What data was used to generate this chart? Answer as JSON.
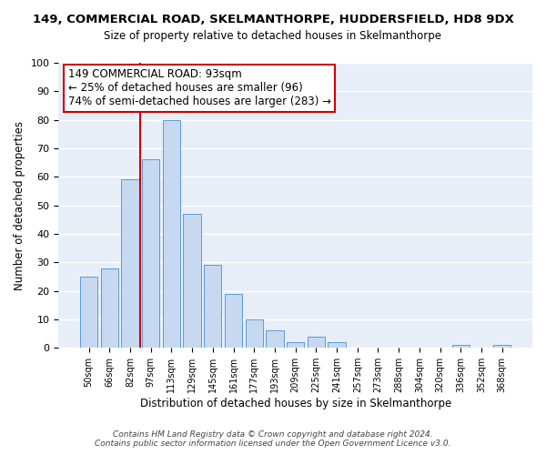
{
  "title": "149, COMMERCIAL ROAD, SKELMANTHORPE, HUDDERSFIELD, HD8 9DX",
  "subtitle": "Size of property relative to detached houses in Skelmanthorpe",
  "xlabel": "Distribution of detached houses by size in Skelmanthorpe",
  "ylabel": "Number of detached properties",
  "bar_labels": [
    "50sqm",
    "66sqm",
    "82sqm",
    "97sqm",
    "113sqm",
    "129sqm",
    "145sqm",
    "161sqm",
    "177sqm",
    "193sqm",
    "209sqm",
    "225sqm",
    "241sqm",
    "257sqm",
    "273sqm",
    "288sqm",
    "304sqm",
    "320sqm",
    "336sqm",
    "352sqm",
    "368sqm"
  ],
  "bar_values": [
    25,
    28,
    59,
    66,
    80,
    47,
    29,
    19,
    10,
    6,
    2,
    4,
    2,
    0,
    0,
    0,
    0,
    0,
    1,
    0,
    1
  ],
  "bar_color": "#c6d9f0",
  "bar_edge_color": "#5b9bd5",
  "vline_color": "#cc0000",
  "annotation_text_line1": "149 COMMERCIAL ROAD: 93sqm",
  "annotation_text_line2": "← 25% of detached houses are smaller (96)",
  "annotation_text_line3": "74% of semi-detached houses are larger (283) →",
  "annotation_box_facecolor": "#ffffff",
  "annotation_box_edgecolor": "#cc0000",
  "annotation_fontsize": 8.5,
  "ylim": [
    0,
    100
  ],
  "yticks": [
    0,
    10,
    20,
    30,
    40,
    50,
    60,
    70,
    80,
    90,
    100
  ],
  "title_fontsize": 9.5,
  "subtitle_fontsize": 8.5,
  "xlabel_fontsize": 8.5,
  "ylabel_fontsize": 8.5,
  "footer_line1": "Contains HM Land Registry data © Crown copyright and database right 2024.",
  "footer_line2": "Contains public sector information licensed under the Open Government Licence v3.0.",
  "background_color": "#ffffff",
  "plot_background_color": "#e8eef8",
  "grid_color": "#ffffff"
}
